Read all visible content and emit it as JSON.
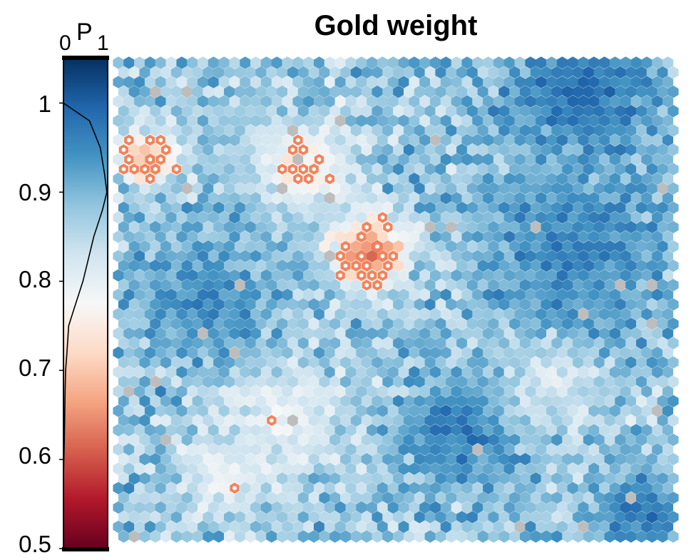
{
  "chart_data": {
    "type": "heatmap",
    "subtype": "hexagonal-self-organizing-map",
    "title": "Gold weight",
    "colorbar": {
      "label": "P",
      "p_ticks": [
        "0",
        "1"
      ],
      "range": [
        0.5,
        1.05
      ],
      "ticks": [
        1,
        0.9,
        0.8,
        0.7,
        0.6,
        0.5
      ],
      "tick_labels": [
        "1",
        "0.9",
        "0.8",
        "0.7",
        "0.6",
        "0.5"
      ],
      "colormap": "RdBu",
      "colormap_stops": [
        "#67001f",
        "#b2182b",
        "#d6604d",
        "#f4a582",
        "#fddbc7",
        "#f7f7f7",
        "#d1e5f0",
        "#92c5de",
        "#4393c3",
        "#2166ac",
        "#053061"
      ],
      "density_curve": {
        "value": [
          1.0,
          0.98,
          0.95,
          0.92,
          0.9,
          0.88,
          0.85,
          0.82,
          0.8,
          0.77,
          0.75,
          0.72,
          0.7,
          0.68,
          0.65,
          0.62,
          0.6,
          0.58
        ],
        "density": [
          0.0,
          0.6,
          0.85,
          0.95,
          1.0,
          0.9,
          0.7,
          0.55,
          0.45,
          0.25,
          0.12,
          0.08,
          0.05,
          0.04,
          0.03,
          0.02,
          0.01,
          0.0
        ]
      }
    },
    "grid": {
      "columns": 53,
      "rows": 50,
      "cell_shape": "hexagon"
    },
    "value_clusters": [
      {
        "col": 0.22,
        "row": 0.16,
        "spread": 0.07,
        "value": 0.88
      },
      {
        "col": 0.15,
        "row": 0.5,
        "spread": 0.09,
        "value": 0.95
      },
      {
        "col": 0.85,
        "row": 0.06,
        "spread": 0.1,
        "value": 0.98
      },
      {
        "col": 0.82,
        "row": 0.4,
        "spread": 0.12,
        "value": 0.96
      },
      {
        "col": 0.62,
        "row": 0.78,
        "spread": 0.08,
        "value": 0.97
      },
      {
        "col": 0.95,
        "row": 0.95,
        "spread": 0.06,
        "value": 0.97
      },
      {
        "col": 0.45,
        "row": 0.4,
        "spread": 0.05,
        "value": 0.62
      },
      {
        "col": 0.33,
        "row": 0.22,
        "spread": 0.06,
        "value": 0.75
      },
      {
        "col": 0.05,
        "row": 0.2,
        "spread": 0.04,
        "value": 0.68
      },
      {
        "col": 0.2,
        "row": 0.88,
        "spread": 0.06,
        "value": 0.8
      },
      {
        "col": 0.78,
        "row": 0.68,
        "spread": 0.06,
        "value": 0.82
      },
      {
        "col": 0.3,
        "row": 0.75,
        "spread": 0.08,
        "value": 0.8
      }
    ],
    "missing_value_color": "#bdbdbd",
    "highlight_ring_color": "#f0845d"
  }
}
